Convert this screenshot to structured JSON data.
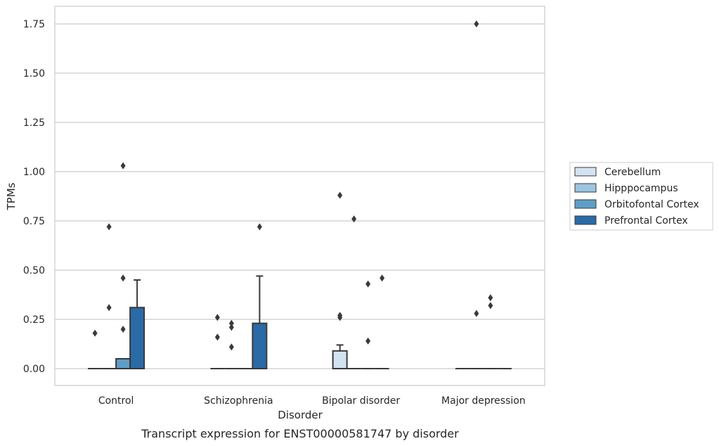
{
  "chart_data": {
    "type": "box",
    "caption": "Transcript expression for ENST00000581747 by disorder",
    "xlabel": "Disorder",
    "ylabel": "TPMs",
    "ylim": [
      -0.08,
      1.84
    ],
    "yticks": [
      0.0,
      0.25,
      0.5,
      0.75,
      1.0,
      1.25,
      1.5,
      1.75
    ],
    "ytick_labels": [
      "0.00",
      "0.25",
      "0.50",
      "0.75",
      "1.00",
      "1.25",
      "1.50",
      "1.75"
    ],
    "grid": "horizontal",
    "legend_position": "right",
    "categories": [
      "Control",
      "Schizophrenia",
      "Bipolar disorder",
      "Major depression"
    ],
    "series": [
      {
        "name": "Cerebellum",
        "color": "#d4e3f2",
        "boxes": [
          {
            "q1": 0,
            "median": 0,
            "q3": 0,
            "whisker_low": 0,
            "whisker_high": 0,
            "outliers": [
              0.18
            ]
          },
          {
            "q1": 0,
            "median": 0,
            "q3": 0,
            "whisker_low": 0,
            "whisker_high": 0,
            "outliers": [
              0.16,
              0.26
            ]
          },
          {
            "q1": 0,
            "median": 0,
            "q3": 0.09,
            "whisker_low": 0,
            "whisker_high": 0.12,
            "outliers": [
              0.26,
              0.27,
              0.88
            ]
          },
          {
            "q1": 0,
            "median": 0,
            "q3": 0,
            "whisker_low": 0,
            "whisker_high": 0,
            "outliers": []
          }
        ]
      },
      {
        "name": "Hipppocampus",
        "color": "#9cc5df",
        "boxes": [
          {
            "q1": 0,
            "median": 0,
            "q3": 0,
            "whisker_low": 0,
            "whisker_high": 0,
            "outliers": [
              0.31,
              0.72
            ]
          },
          {
            "q1": 0,
            "median": 0,
            "q3": 0,
            "whisker_low": 0,
            "whisker_high": 0,
            "outliers": [
              0.11,
              0.21,
              0.23
            ]
          },
          {
            "q1": 0,
            "median": 0,
            "q3": 0,
            "whisker_low": 0,
            "whisker_high": 0,
            "outliers": [
              0.76
            ]
          },
          {
            "q1": 0,
            "median": 0,
            "q3": 0,
            "whisker_low": 0,
            "whisker_high": 0,
            "outliers": [
              0.28,
              1.75
            ]
          }
        ]
      },
      {
        "name": "Orbitofontal Cortex",
        "color": "#5d9ec8",
        "boxes": [
          {
            "q1": 0,
            "median": 0,
            "q3": 0.05,
            "whisker_low": 0,
            "whisker_high": 0.05,
            "outliers": [
              0.2,
              0.46,
              1.03
            ]
          },
          {
            "q1": 0,
            "median": 0,
            "q3": 0,
            "whisker_low": 0,
            "whisker_high": 0,
            "outliers": []
          },
          {
            "q1": 0,
            "median": 0,
            "q3": 0,
            "whisker_low": 0,
            "whisker_high": 0,
            "outliers": [
              0.14,
              0.43
            ]
          },
          {
            "q1": 0,
            "median": 0,
            "q3": 0,
            "whisker_low": 0,
            "whisker_high": 0,
            "outliers": [
              0.32,
              0.36
            ]
          }
        ]
      },
      {
        "name": "Prefrontal Cortex",
        "color": "#2a6aa6",
        "boxes": [
          {
            "q1": 0,
            "median": 0,
            "q3": 0.31,
            "whisker_low": 0,
            "whisker_high": 0.45,
            "outliers": []
          },
          {
            "q1": 0,
            "median": 0,
            "q3": 0.23,
            "whisker_low": 0,
            "whisker_high": 0.47,
            "outliers": [
              0.72
            ]
          },
          {
            "q1": 0,
            "median": 0,
            "q3": 0,
            "whisker_low": 0,
            "whisker_high": 0,
            "outliers": [
              0.46
            ]
          },
          {
            "q1": 0,
            "median": 0,
            "q3": 0,
            "whisker_low": 0,
            "whisker_high": 0,
            "outliers": []
          }
        ]
      }
    ]
  }
}
